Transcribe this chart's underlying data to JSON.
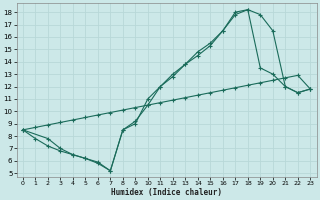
{
  "xlabel": "Humidex (Indice chaleur)",
  "bg_color": "#cce8e8",
  "grid_color": "#b8d8d8",
  "line_color": "#1a6b5a",
  "xlim": [
    -0.5,
    23.5
  ],
  "ylim": [
    4.7,
    18.7
  ],
  "xticks": [
    0,
    1,
    2,
    3,
    4,
    5,
    6,
    7,
    8,
    9,
    10,
    11,
    12,
    13,
    14,
    15,
    16,
    17,
    18,
    19,
    20,
    21,
    22,
    23
  ],
  "yticks": [
    5,
    6,
    7,
    8,
    9,
    10,
    11,
    12,
    13,
    14,
    15,
    16,
    17,
    18
  ],
  "line1_x": [
    0,
    1,
    2,
    3,
    4,
    5,
    6,
    7,
    8,
    9,
    10,
    11,
    12,
    13,
    14,
    15,
    16,
    17,
    18,
    19,
    20,
    21,
    22,
    23
  ],
  "line1_y": [
    8.5,
    7.8,
    7.2,
    6.8,
    6.5,
    6.2,
    5.9,
    5.2,
    8.5,
    9.0,
    11.0,
    12.0,
    13.0,
    13.8,
    14.5,
    15.3,
    16.5,
    17.8,
    18.2,
    17.8,
    16.5,
    12.0,
    11.5,
    11.8
  ],
  "line2_x": [
    0,
    1,
    2,
    3,
    4,
    5,
    6,
    7,
    8,
    9,
    10,
    11,
    12,
    13,
    14,
    15,
    16,
    17,
    18,
    19,
    20,
    21,
    22,
    23
  ],
  "line2_y": [
    8.5,
    8.7,
    8.9,
    9.1,
    9.3,
    9.5,
    9.7,
    9.9,
    10.1,
    10.3,
    10.5,
    10.7,
    10.9,
    11.1,
    11.3,
    11.5,
    11.7,
    11.9,
    12.1,
    12.3,
    12.5,
    12.7,
    12.9,
    11.8
  ],
  "line3_x": [
    0,
    2,
    3,
    4,
    5,
    6,
    7,
    8,
    9,
    10,
    11,
    12,
    13,
    14,
    15,
    16,
    17,
    18,
    19,
    20,
    21,
    22,
    23
  ],
  "line3_y": [
    8.5,
    7.8,
    7.0,
    6.5,
    6.2,
    5.8,
    5.2,
    8.5,
    9.2,
    10.5,
    12.0,
    12.8,
    13.8,
    14.8,
    15.5,
    16.5,
    18.0,
    18.2,
    13.5,
    13.0,
    12.0,
    11.5,
    11.8
  ]
}
